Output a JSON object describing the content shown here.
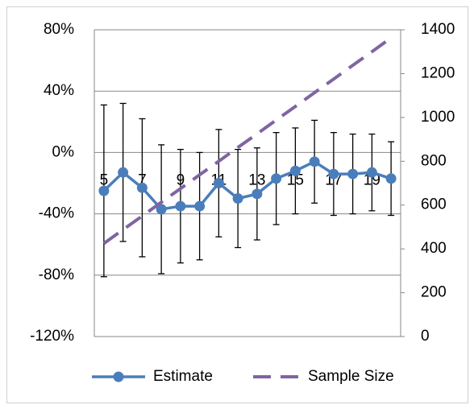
{
  "chart_data": {
    "type": "line",
    "categories": [
      "5",
      null,
      "7",
      null,
      "9",
      null,
      "11",
      null,
      "13",
      null,
      "15",
      null,
      "17",
      null,
      "19",
      null
    ],
    "series": [
      {
        "name": "Estimate",
        "color": "#4a7ebb",
        "axis": "y",
        "values": [
          -25,
          -13,
          -23,
          -37,
          -35,
          -35,
          -20,
          -30,
          -27,
          -17,
          -12,
          -6,
          -14,
          -14,
          -13,
          -17
        ],
        "errors": [
          56,
          45,
          45,
          42,
          37,
          35,
          35,
          32,
          30,
          30,
          28,
          27,
          27,
          26,
          25,
          24
        ]
      },
      {
        "name": "Sample Size",
        "color": "#8064a2",
        "axis": "y2",
        "dashed": true,
        "values": [
          425,
          488,
          550,
          613,
          675,
          738,
          800,
          863,
          925,
          988,
          1050,
          1113,
          1175,
          1238,
          1300,
          1363
        ]
      }
    ],
    "ylim": [
      -120,
      80
    ],
    "yticks": [
      {
        "value": -120,
        "label": "-120%"
      },
      {
        "value": -80,
        "label": "-80%"
      },
      {
        "value": -40,
        "label": "-40%"
      },
      {
        "value": 0,
        "label": "0%"
      },
      {
        "value": 40,
        "label": "40%"
      },
      {
        "value": 80,
        "label": "80%"
      }
    ],
    "y2lim": [
      0,
      1400
    ],
    "y2ticks": [
      0,
      200,
      400,
      600,
      800,
      1000,
      1200,
      1400
    ],
    "grid": true,
    "legend": "bottom"
  }
}
